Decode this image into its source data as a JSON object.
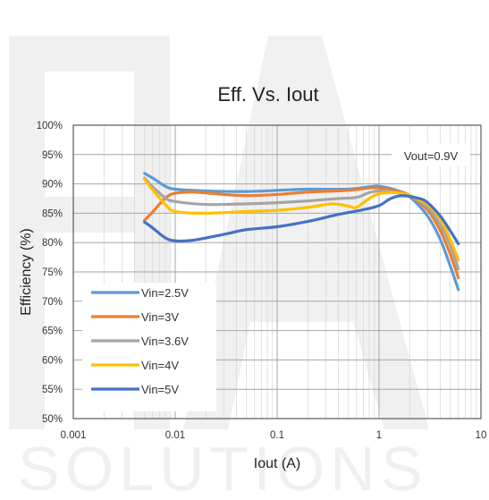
{
  "chart_data": {
    "type": "line",
    "title": "Eff. Vs. Iout",
    "xlabel": "Iout (A)",
    "ylabel": "Efficiency (%)",
    "x_scale": "log",
    "xlim": [
      0.001,
      10
    ],
    "ylim": [
      50,
      100
    ],
    "x_tick_labels": [
      "0.001",
      "0.01",
      "0.1",
      "1",
      "10"
    ],
    "y_tick_labels": [
      "50%",
      "55%",
      "60%",
      "65%",
      "70%",
      "75%",
      "80%",
      "85%",
      "90%",
      "95%",
      "100%"
    ],
    "grid": true,
    "legend_position": "bottom-left",
    "annotation": "Vout=0.9V",
    "series": [
      {
        "name": "Vin=2.5V",
        "color": "#5B9BD5",
        "points": [
          [
            0.005,
            91.8
          ],
          [
            0.006,
            91.0
          ],
          [
            0.008,
            89.6
          ],
          [
            0.01,
            89.1
          ],
          [
            0.02,
            88.8
          ],
          [
            0.05,
            88.7
          ],
          [
            0.1,
            88.9
          ],
          [
            0.2,
            89.1
          ],
          [
            0.5,
            89.1
          ],
          [
            0.8,
            89.5
          ],
          [
            1,
            89.6
          ],
          [
            1.5,
            88.9
          ],
          [
            2,
            87.8
          ],
          [
            3,
            84.5
          ],
          [
            4,
            80.5
          ],
          [
            5,
            76.0
          ],
          [
            6,
            72.0
          ]
        ]
      },
      {
        "name": "Vin=3V",
        "color": "#ED7D31",
        "points": [
          [
            0.005,
            83.8
          ],
          [
            0.006,
            85.2
          ],
          [
            0.008,
            87.6
          ],
          [
            0.01,
            88.4
          ],
          [
            0.015,
            88.6
          ],
          [
            0.03,
            88.2
          ],
          [
            0.05,
            88.0
          ],
          [
            0.1,
            88.2
          ],
          [
            0.2,
            88.6
          ],
          [
            0.5,
            88.9
          ],
          [
            0.8,
            89.3
          ],
          [
            1,
            89.3
          ],
          [
            1.5,
            88.8
          ],
          [
            2,
            88.0
          ],
          [
            3,
            85.5
          ],
          [
            4,
            82.0
          ],
          [
            5,
            78.0
          ],
          [
            6,
            74.0
          ]
        ]
      },
      {
        "name": "Vin=3.6V",
        "color": "#A5A5A5",
        "points": [
          [
            0.005,
            91.0
          ],
          [
            0.006,
            89.5
          ],
          [
            0.008,
            87.6
          ],
          [
            0.01,
            87.0
          ],
          [
            0.02,
            86.5
          ],
          [
            0.05,
            86.6
          ],
          [
            0.1,
            86.8
          ],
          [
            0.2,
            87.1
          ],
          [
            0.4,
            87.5
          ],
          [
            0.6,
            87.7
          ],
          [
            0.8,
            88.5
          ],
          [
            1,
            88.8
          ],
          [
            1.5,
            88.5
          ],
          [
            2,
            88.0
          ],
          [
            3,
            86.0
          ],
          [
            4,
            83.0
          ],
          [
            5,
            79.5
          ],
          [
            6,
            75.5
          ]
        ]
      },
      {
        "name": "Vin=4V",
        "color": "#FFC000",
        "points": [
          [
            0.005,
            90.8
          ],
          [
            0.006,
            89.0
          ],
          [
            0.008,
            86.5
          ],
          [
            0.01,
            85.3
          ],
          [
            0.02,
            85.0
          ],
          [
            0.05,
            85.3
          ],
          [
            0.1,
            85.5
          ],
          [
            0.2,
            86.0
          ],
          [
            0.35,
            86.6
          ],
          [
            0.5,
            86.2
          ],
          [
            0.6,
            86.0
          ],
          [
            0.8,
            87.5
          ],
          [
            1,
            88.3
          ],
          [
            1.5,
            88.5
          ],
          [
            2,
            88.0
          ],
          [
            3,
            86.5
          ],
          [
            4,
            84.0
          ],
          [
            5,
            80.5
          ],
          [
            6,
            77.0
          ]
        ]
      },
      {
        "name": "Vin=5V",
        "color": "#4472C4",
        "points": [
          [
            0.005,
            83.5
          ],
          [
            0.006,
            82.5
          ],
          [
            0.008,
            80.8
          ],
          [
            0.01,
            80.3
          ],
          [
            0.015,
            80.4
          ],
          [
            0.03,
            81.4
          ],
          [
            0.05,
            82.2
          ],
          [
            0.1,
            82.7
          ],
          [
            0.2,
            83.6
          ],
          [
            0.4,
            84.8
          ],
          [
            0.7,
            85.6
          ],
          [
            1,
            86.3
          ],
          [
            1.3,
            87.5
          ],
          [
            1.7,
            88.0
          ],
          [
            2.5,
            87.5
          ],
          [
            3,
            86.8
          ],
          [
            4,
            84.5
          ],
          [
            5,
            82.0
          ],
          [
            6,
            79.8
          ]
        ]
      }
    ]
  }
}
